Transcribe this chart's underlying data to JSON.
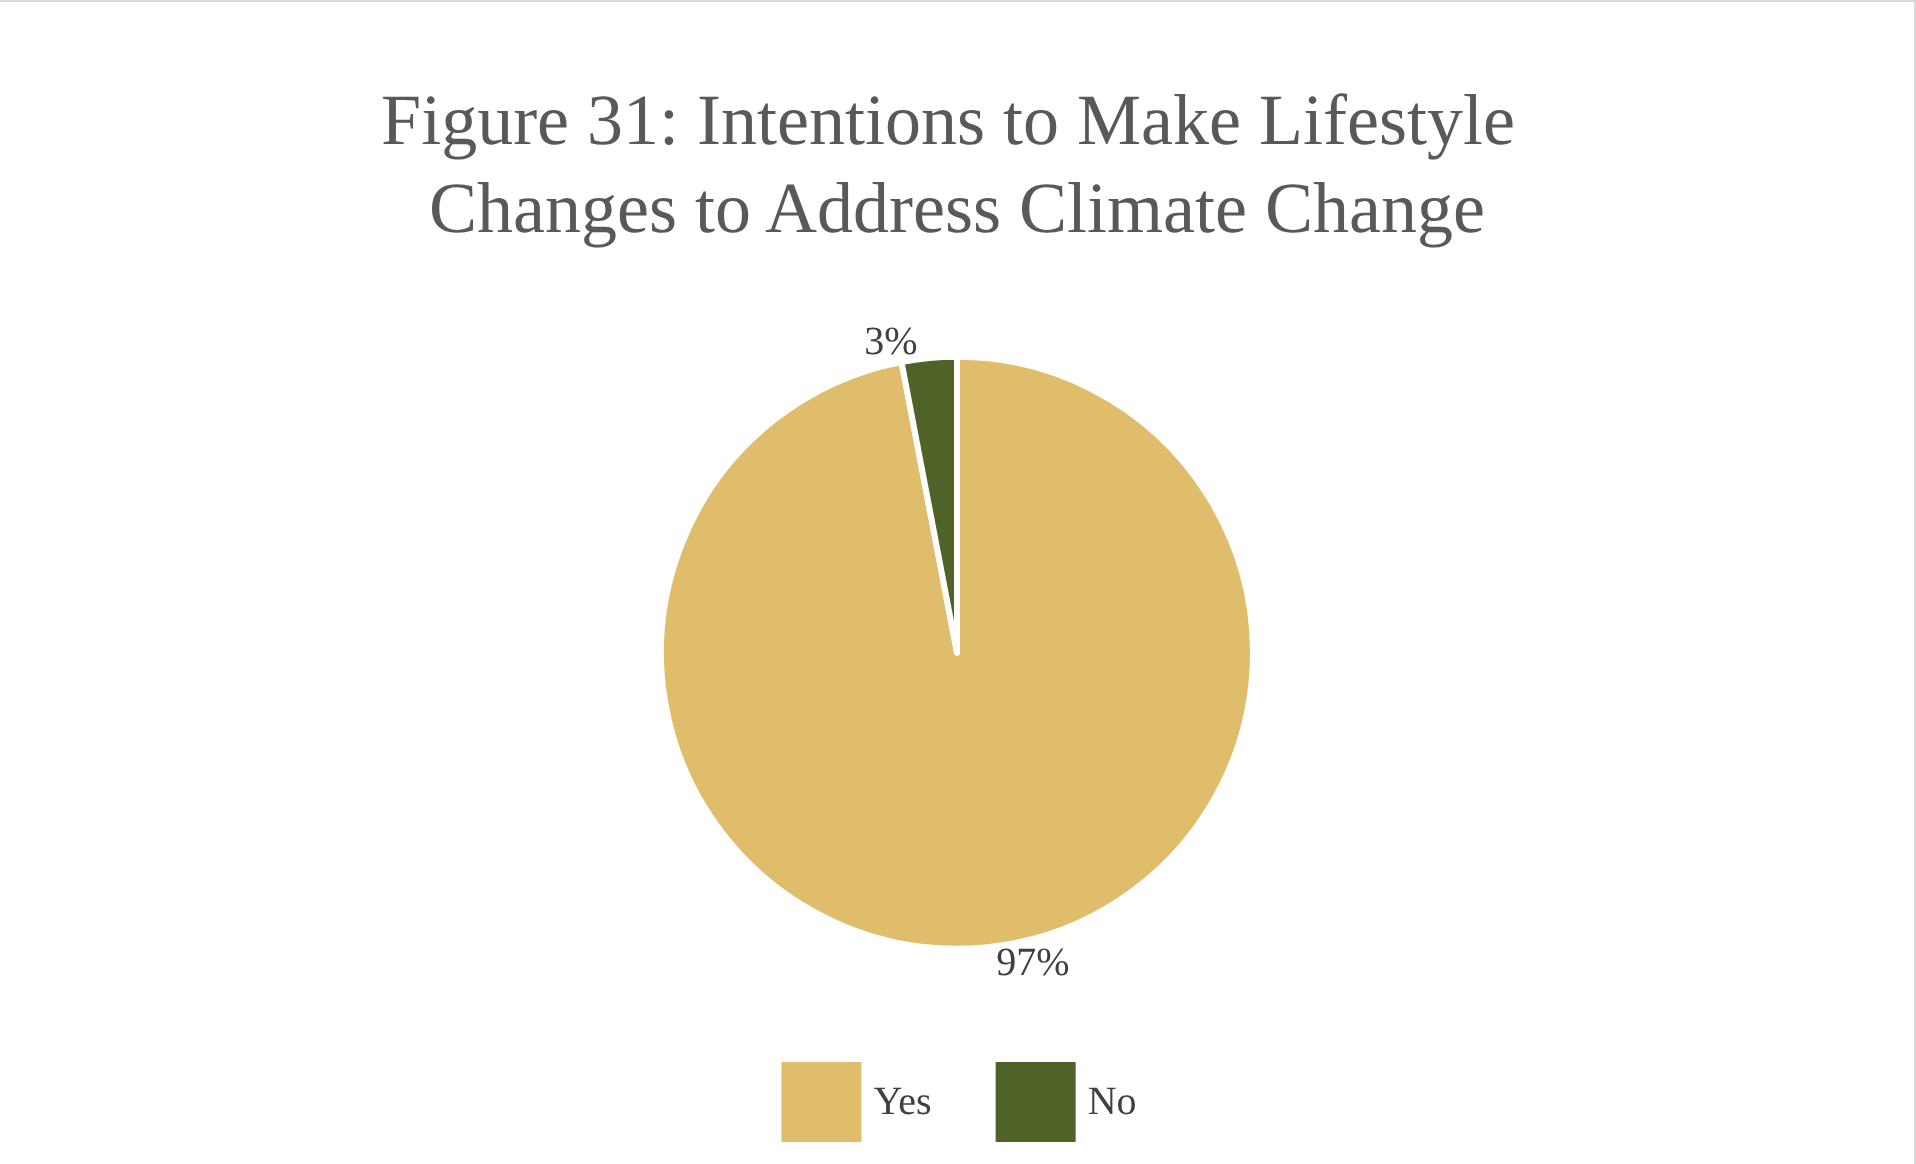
{
  "chart_data": {
    "type": "pie",
    "title": "Figure 31: Intentions to Make Lifestyle Changes to Address Climate Change",
    "categories": [
      "Yes",
      "No"
    ],
    "values": [
      97,
      3
    ],
    "colors": [
      "#e0bd6a",
      "#4f6228"
    ],
    "value_labels": [
      "97%",
      "3%"
    ],
    "legend": "bottom"
  }
}
